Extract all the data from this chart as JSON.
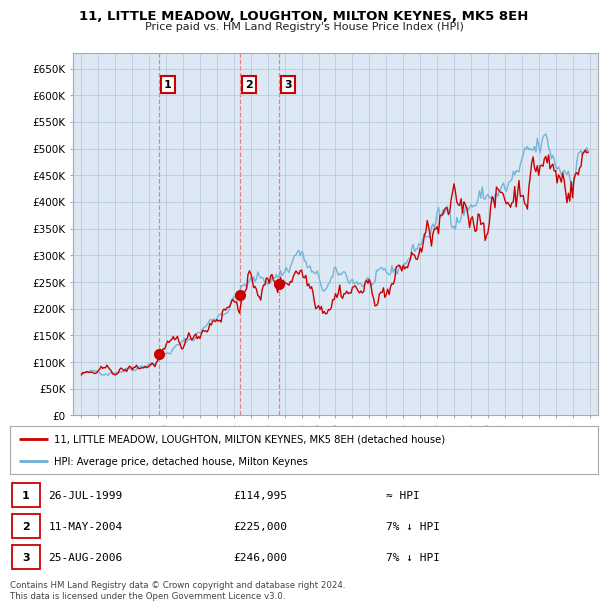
{
  "title": "11, LITTLE MEADOW, LOUGHTON, MILTON KEYNES, MK5 8EH",
  "subtitle": "Price paid vs. HM Land Registry's House Price Index (HPI)",
  "ylim": [
    0,
    680000
  ],
  "yticks": [
    0,
    50000,
    100000,
    150000,
    200000,
    250000,
    300000,
    350000,
    400000,
    450000,
    500000,
    550000,
    600000,
    650000
  ],
  "ytick_labels": [
    "£0",
    "£50K",
    "£100K",
    "£150K",
    "£200K",
    "£250K",
    "£300K",
    "£350K",
    "£400K",
    "£450K",
    "£500K",
    "£550K",
    "£600K",
    "£650K"
  ],
  "hpi_color": "#6baed6",
  "price_color": "#cc0000",
  "dashed_color": "#e88080",
  "chart_bg": "#dce9f5",
  "background_color": "#ffffff",
  "grid_color": "#b0c4d8",
  "transactions": [
    {
      "label": "1",
      "year": 1999.58,
      "price": 114995
    },
    {
      "label": "2",
      "year": 2004.36,
      "price": 225000
    },
    {
      "label": "3",
      "year": 2006.65,
      "price": 246000
    }
  ],
  "legend_line1": "11, LITTLE MEADOW, LOUGHTON, MILTON KEYNES, MK5 8EH (detached house)",
  "legend_line2": "HPI: Average price, detached house, Milton Keynes",
  "table_rows": [
    {
      "num": "1",
      "date": "26-JUL-1999",
      "price": "£114,995",
      "vs_hpi": "≈ HPI"
    },
    {
      "num": "2",
      "date": "11-MAY-2004",
      "price": "£225,000",
      "vs_hpi": "7% ↓ HPI"
    },
    {
      "num": "3",
      "date": "25-AUG-2006",
      "price": "£246,000",
      "vs_hpi": "7% ↓ HPI"
    }
  ],
  "footer": "Contains HM Land Registry data © Crown copyright and database right 2024.\nThis data is licensed under the Open Government Licence v3.0."
}
